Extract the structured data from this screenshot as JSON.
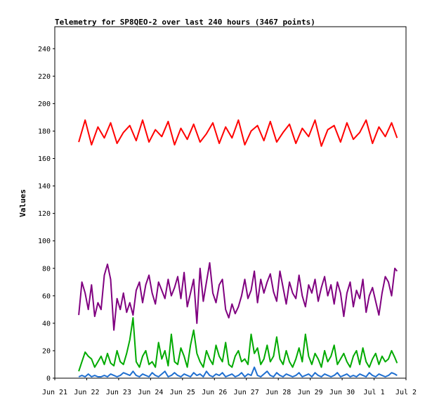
{
  "chart_data": {
    "type": "line",
    "title": "Telemetry for SP8QEO-2 over last 240 hours (3467 points)",
    "xlabel": "",
    "ylabel": "Values",
    "x_ticks": [
      "Jun 21",
      "Jun 22",
      "Jun 23",
      "Jun 24",
      "Jun 25",
      "Jun 26",
      "Jun 27",
      "Jun 28",
      "Jun 29",
      "Jun 30",
      "Jul 1",
      "Jul 2"
    ],
    "y_ticks": [
      0,
      20,
      40,
      60,
      80,
      100,
      120,
      140,
      160,
      180,
      200,
      220,
      240
    ],
    "ylim": [
      0,
      256
    ],
    "xlim_days": [
      0,
      11
    ],
    "grid": false,
    "series": [
      {
        "color": "#ff0000",
        "x": [
          0.75,
          0.95,
          1.15,
          1.35,
          1.55,
          1.75,
          1.95,
          2.15,
          2.35,
          2.55,
          2.75,
          2.95,
          3.15,
          3.35,
          3.55,
          3.75,
          3.95,
          4.15,
          4.35,
          4.55,
          4.75,
          4.95,
          5.15,
          5.35,
          5.55,
          5.75,
          5.95,
          6.15,
          6.35,
          6.55,
          6.75,
          6.95,
          7.15,
          7.35,
          7.55,
          7.75,
          7.95,
          8.15,
          8.35,
          8.55,
          8.75,
          8.95,
          9.15,
          9.35,
          9.55,
          9.75,
          9.95,
          10.15,
          10.35,
          10.55,
          10.72
        ],
        "values": [
          172,
          188,
          170,
          183,
          175,
          186,
          171,
          179,
          184,
          173,
          188,
          172,
          181,
          176,
          187,
          170,
          182,
          174,
          185,
          172,
          178,
          186,
          171,
          183,
          175,
          188,
          170,
          180,
          184,
          173,
          187,
          172,
          179,
          185,
          171,
          182,
          176,
          188,
          169,
          181,
          184,
          172,
          186,
          174,
          179,
          188,
          171,
          183,
          176,
          186,
          175
        ]
      },
      {
        "color": "#800080",
        "x": [
          0.75,
          0.85,
          0.95,
          1.05,
          1.15,
          1.25,
          1.35,
          1.45,
          1.55,
          1.65,
          1.75,
          1.85,
          1.95,
          2.05,
          2.15,
          2.25,
          2.35,
          2.45,
          2.55,
          2.65,
          2.75,
          2.85,
          2.95,
          3.05,
          3.15,
          3.25,
          3.35,
          3.45,
          3.55,
          3.65,
          3.75,
          3.85,
          3.95,
          4.05,
          4.15,
          4.25,
          4.35,
          4.45,
          4.55,
          4.65,
          4.75,
          4.85,
          4.95,
          5.05,
          5.15,
          5.25,
          5.35,
          5.45,
          5.55,
          5.65,
          5.75,
          5.85,
          5.95,
          6.05,
          6.15,
          6.25,
          6.35,
          6.45,
          6.55,
          6.65,
          6.75,
          6.85,
          6.95,
          7.05,
          7.15,
          7.25,
          7.35,
          7.45,
          7.55,
          7.65,
          7.75,
          7.85,
          7.95,
          8.05,
          8.15,
          8.25,
          8.35,
          8.45,
          8.55,
          8.65,
          8.75,
          8.85,
          8.95,
          9.05,
          9.15,
          9.25,
          9.35,
          9.45,
          9.55,
          9.65,
          9.75,
          9.85,
          9.95,
          10.05,
          10.15,
          10.25,
          10.35,
          10.45,
          10.55,
          10.65,
          10.72
        ],
        "values": [
          46,
          70,
          62,
          50,
          68,
          45,
          55,
          50,
          75,
          83,
          72,
          35,
          58,
          50,
          62,
          48,
          55,
          46,
          64,
          70,
          55,
          68,
          75,
          62,
          54,
          70,
          64,
          58,
          72,
          60,
          66,
          74,
          58,
          77,
          52,
          62,
          72,
          40,
          80,
          56,
          70,
          84,
          62,
          55,
          68,
          72,
          50,
          44,
          54,
          47,
          52,
          60,
          72,
          58,
          64,
          78,
          55,
          72,
          62,
          70,
          76,
          63,
          56,
          78,
          66,
          54,
          70,
          62,
          58,
          75,
          60,
          52,
          68,
          62,
          72,
          56,
          66,
          74,
          60,
          68,
          54,
          70,
          62,
          45,
          62,
          70,
          52,
          64,
          58,
          72,
          48,
          60,
          66,
          56,
          46,
          62,
          74,
          70,
          60,
          80,
          78
        ]
      },
      {
        "color": "#00aa00",
        "x": [
          0.75,
          0.85,
          0.95,
          1.05,
          1.15,
          1.25,
          1.35,
          1.45,
          1.55,
          1.65,
          1.75,
          1.85,
          1.95,
          2.05,
          2.15,
          2.25,
          2.35,
          2.45,
          2.55,
          2.65,
          2.75,
          2.85,
          2.95,
          3.05,
          3.15,
          3.25,
          3.35,
          3.45,
          3.55,
          3.65,
          3.75,
          3.85,
          3.95,
          4.05,
          4.15,
          4.25,
          4.35,
          4.45,
          4.55,
          4.65,
          4.75,
          4.85,
          4.95,
          5.05,
          5.15,
          5.25,
          5.35,
          5.45,
          5.55,
          5.65,
          5.75,
          5.85,
          5.95,
          6.05,
          6.15,
          6.25,
          6.35,
          6.45,
          6.55,
          6.65,
          6.75,
          6.85,
          6.95,
          7.05,
          7.15,
          7.25,
          7.35,
          7.45,
          7.55,
          7.65,
          7.75,
          7.85,
          7.95,
          8.05,
          8.15,
          8.25,
          8.35,
          8.45,
          8.55,
          8.65,
          8.75,
          8.85,
          8.95,
          9.05,
          9.15,
          9.25,
          9.35,
          9.45,
          9.55,
          9.65,
          9.75,
          9.85,
          9.95,
          10.05,
          10.15,
          10.25,
          10.35,
          10.45,
          10.55,
          10.65,
          10.72
        ],
        "values": [
          5,
          12,
          19,
          16,
          14,
          8,
          12,
          16,
          10,
          18,
          11,
          9,
          20,
          12,
          10,
          18,
          28,
          44,
          12,
          8,
          16,
          20,
          10,
          12,
          8,
          26,
          14,
          20,
          9,
          32,
          12,
          10,
          22,
          16,
          8,
          24,
          35,
          18,
          12,
          8,
          20,
          14,
          10,
          24,
          16,
          12,
          26,
          10,
          8,
          16,
          20,
          12,
          14,
          10,
          32,
          18,
          22,
          10,
          14,
          24,
          12,
          16,
          30,
          14,
          10,
          20,
          12,
          8,
          14,
          22,
          12,
          32,
          16,
          10,
          18,
          14,
          8,
          20,
          12,
          16,
          24,
          10,
          14,
          18,
          12,
          8,
          16,
          20,
          10,
          22,
          12,
          8,
          14,
          18,
          10,
          16,
          12,
          14,
          20,
          15,
          11
        ]
      },
      {
        "color": "#1f6fd0",
        "x": [
          0.75,
          0.85,
          0.95,
          1.05,
          1.15,
          1.25,
          1.35,
          1.45,
          1.55,
          1.65,
          1.75,
          1.85,
          1.95,
          2.05,
          2.15,
          2.25,
          2.35,
          2.45,
          2.55,
          2.65,
          2.75,
          2.85,
          2.95,
          3.05,
          3.15,
          3.25,
          3.35,
          3.45,
          3.55,
          3.65,
          3.75,
          3.85,
          3.95,
          4.05,
          4.15,
          4.25,
          4.35,
          4.45,
          4.55,
          4.65,
          4.75,
          4.85,
          4.95,
          5.05,
          5.15,
          5.25,
          5.35,
          5.45,
          5.55,
          5.65,
          5.75,
          5.85,
          5.95,
          6.05,
          6.15,
          6.25,
          6.35,
          6.45,
          6.55,
          6.65,
          6.75,
          6.85,
          6.95,
          7.05,
          7.15,
          7.25,
          7.35,
          7.45,
          7.55,
          7.65,
          7.75,
          7.85,
          7.95,
          8.05,
          8.15,
          8.25,
          8.35,
          8.45,
          8.55,
          8.65,
          8.75,
          8.85,
          8.95,
          9.05,
          9.15,
          9.25,
          9.35,
          9.45,
          9.55,
          9.65,
          9.75,
          9.85,
          9.95,
          10.05,
          10.15,
          10.25,
          10.35,
          10.45,
          10.55,
          10.65,
          10.72
        ],
        "values": [
          1,
          2,
          1,
          3,
          1,
          2,
          1,
          1,
          2,
          1,
          3,
          2,
          1,
          2,
          4,
          3,
          2,
          5,
          2,
          1,
          3,
          2,
          1,
          4,
          2,
          1,
          3,
          5,
          1,
          2,
          4,
          2,
          1,
          3,
          2,
          1,
          4,
          2,
          3,
          1,
          5,
          2,
          1,
          3,
          2,
          4,
          1,
          2,
          3,
          1,
          2,
          4,
          1,
          3,
          2,
          8,
          2,
          1,
          3,
          5,
          2,
          1,
          4,
          2,
          1,
          3,
          2,
          1,
          2,
          4,
          1,
          2,
          3,
          1,
          4,
          2,
          1,
          3,
          2,
          1,
          2,
          4,
          1,
          2,
          3,
          1,
          2,
          1,
          3,
          2,
          1,
          4,
          2,
          1,
          3,
          2,
          1,
          2,
          4,
          3,
          2
        ]
      }
    ]
  }
}
